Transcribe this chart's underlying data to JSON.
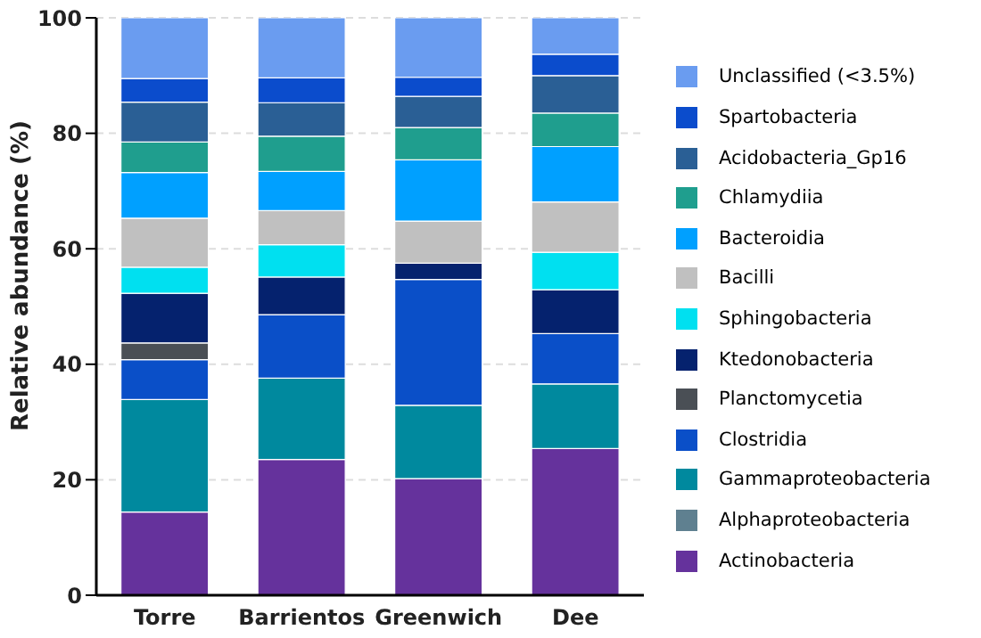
{
  "chart_data": {
    "type": "bar",
    "stacked": true,
    "ylabel": "Relative abundance (%)",
    "categories": [
      "Torre",
      "Barrientos",
      "Greenwich",
      "Dee"
    ],
    "ylim": [
      0,
      100
    ],
    "yticks": [
      0,
      20,
      40,
      60,
      80,
      100
    ],
    "grid": "y",
    "legend": "right",
    "series": [
      {
        "name": "Actinobacteria",
        "color": "#65329c",
        "values": [
          14.4,
          23.5,
          20.2,
          25.4
        ]
      },
      {
        "name": "Alphaproteobacteria",
        "color": "#5f8090",
        "values": [
          0,
          0,
          0,
          0
        ]
      },
      {
        "name": "Gammaproteobacteria",
        "color": "#00899e",
        "values": [
          19.5,
          14.1,
          12.7,
          11.2
        ]
      },
      {
        "name": "Clostridia",
        "color": "#0a4fc8",
        "values": [
          6.9,
          11.0,
          21.8,
          8.7
        ]
      },
      {
        "name": "Planctomycetia",
        "color": "#4a4f55",
        "values": [
          2.9,
          0,
          0,
          0
        ]
      },
      {
        "name": "Ktedonobacteria",
        "color": "#05226e",
        "values": [
          8.6,
          6.5,
          2.8,
          7.6
        ]
      },
      {
        "name": "Sphingobacteria",
        "color": "#00e0f0",
        "values": [
          4.5,
          5.6,
          0,
          6.5
        ]
      },
      {
        "name": "Bacilli",
        "color": "#c0c0c0",
        "values": [
          8.5,
          5.9,
          7.3,
          8.7
        ]
      },
      {
        "name": "Bacteroidia",
        "color": "#00a0ff",
        "values": [
          7.9,
          6.8,
          10.6,
          9.6
        ]
      },
      {
        "name": "Chlamydiia",
        "color": "#1f9e8e",
        "values": [
          5.3,
          6.1,
          5.6,
          5.8
        ]
      },
      {
        "name": "Acidobacteria_Gp16",
        "color": "#2a5f95",
        "values": [
          6.9,
          5.8,
          5.4,
          6.5
        ]
      },
      {
        "name": "Spartobacteria",
        "color": "#0b4ccc",
        "values": [
          4.1,
          4.3,
          3.3,
          3.7
        ]
      },
      {
        "name": "Unclassified (<3.5%)",
        "color": "#6a9cf0",
        "values": [
          10.5,
          10.4,
          10.3,
          6.3
        ]
      }
    ]
  }
}
